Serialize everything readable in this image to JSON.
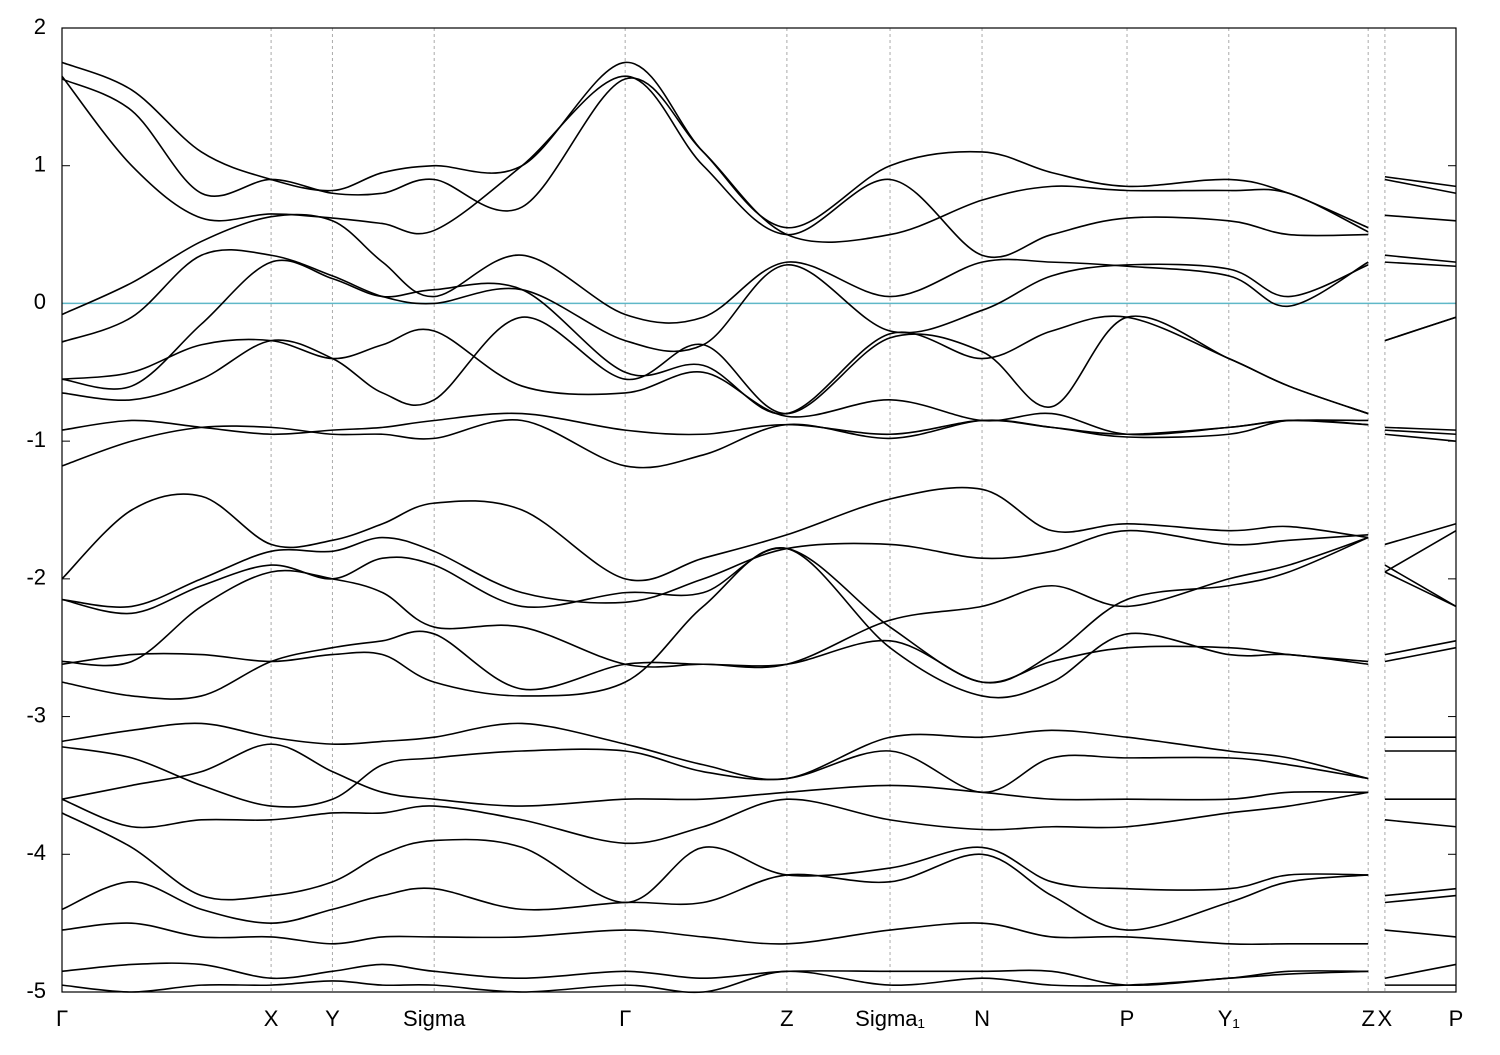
{
  "chart_data": {
    "type": "line",
    "x": [
      0,
      0.05,
      0.1,
      0.15,
      0.194,
      0.23,
      0.267,
      0.33,
      0.404,
      0.46,
      0.52,
      0.594,
      0.66,
      0.71,
      0.764,
      0.837,
      0.88,
      0.937,
      0.943,
      0.949,
      1.0
    ],
    "xlim": [
      0,
      1.0
    ],
    "xticks": [
      {
        "value": 0,
        "label": "Γ"
      },
      {
        "value": 0.15,
        "label": "X"
      },
      {
        "value": 0.194,
        "label": "Y"
      },
      {
        "value": 0.267,
        "label": "Sigma"
      },
      {
        "value": 0.404,
        "label": "Γ"
      },
      {
        "value": 0.52,
        "label": "Z"
      },
      {
        "value": 0.594,
        "label": "Sigma₁"
      },
      {
        "value": 0.66,
        "label": "N"
      },
      {
        "value": 0.764,
        "label": "P"
      },
      {
        "value": 0.837,
        "label": "Y₁"
      },
      {
        "value": 0.937,
        "label": "Z"
      },
      {
        "value": 0.949,
        "label": "X"
      },
      {
        "value": 1.0,
        "label": "P"
      }
    ],
    "ylim": [
      -5,
      2
    ],
    "yticks": [
      -5,
      -4,
      -3,
      -2,
      -1,
      0,
      1,
      2
    ],
    "xgrid": true,
    "reference_line": {
      "value": 0,
      "color": "#5fb8c8"
    },
    "series": [
      {
        "color": "#000000",
        "values": [
          1.75,
          1.55,
          1.1,
          0.9,
          0.82,
          0.95,
          1.0,
          1.0,
          1.75,
          1.1,
          0.55,
          1.0,
          1.1,
          0.95,
          0.85,
          0.9,
          0.8,
          0.55,
          null,
          0.92,
          0.85
        ]
      },
      {
        "color": "#000000",
        "values": [
          1.65,
          1.0,
          0.62,
          0.65,
          0.62,
          0.58,
          0.53,
          1.0,
          1.65,
          1.0,
          0.5,
          0.9,
          0.35,
          0.5,
          0.62,
          0.6,
          0.5,
          0.5,
          null,
          0.64,
          0.6
        ]
      },
      {
        "color": "#000000",
        "values": [
          1.63,
          1.4,
          0.8,
          0.9,
          0.8,
          0.8,
          0.9,
          0.7,
          1.63,
          1.1,
          0.5,
          0.5,
          0.75,
          0.85,
          0.82,
          0.82,
          0.8,
          0.52,
          null,
          0.9,
          0.8
        ]
      },
      {
        "color": "#000000",
        "values": [
          -0.08,
          0.15,
          0.45,
          0.63,
          0.6,
          0.3,
          0.05,
          0.35,
          -0.08,
          -0.1,
          0.3,
          0.05,
          0.3,
          0.3,
          0.27,
          0.2,
          -0.02,
          0.3,
          null,
          0.35,
          0.3
        ]
      },
      {
        "color": "#000000",
        "values": [
          -0.28,
          -0.1,
          0.35,
          0.35,
          0.2,
          0.05,
          0.0,
          0.1,
          -0.27,
          -0.3,
          0.28,
          -0.2,
          -0.05,
          0.2,
          0.28,
          0.25,
          0.05,
          0.28,
          null,
          0.3,
          0.27
        ]
      },
      {
        "color": "#000000",
        "values": [
          -0.55,
          -0.6,
          -0.15,
          0.3,
          0.18,
          0.05,
          0.1,
          0.1,
          -0.5,
          -0.45,
          -0.8,
          -0.22,
          -0.4,
          -0.2,
          -0.1,
          -0.4,
          -0.6,
          -0.8,
          null,
          -0.27,
          -0.1
        ]
      },
      {
        "color": "#000000",
        "values": [
          -0.55,
          -0.5,
          -0.3,
          -0.27,
          -0.4,
          -0.3,
          -0.2,
          -0.6,
          -0.65,
          -0.5,
          -0.82,
          -0.7,
          -0.85,
          -0.8,
          -0.95,
          -0.9,
          -0.85,
          -0.88,
          null,
          -0.92,
          -0.95
        ]
      },
      {
        "color": "#000000",
        "values": [
          -0.65,
          -0.7,
          -0.55,
          -0.27,
          -0.4,
          -0.65,
          -0.7,
          -0.1,
          -0.55,
          -0.3,
          -0.8,
          -0.25,
          -0.35,
          -0.75,
          -0.1,
          -0.4,
          -0.6,
          -0.8,
          null,
          -0.27,
          -0.1
        ]
      },
      {
        "color": "#000000",
        "values": [
          -0.92,
          -0.85,
          -0.9,
          -0.95,
          -0.92,
          -0.9,
          -0.85,
          -0.8,
          -0.92,
          -0.95,
          -0.88,
          -0.95,
          -0.85,
          -0.9,
          -0.95,
          -0.9,
          -0.85,
          -0.85,
          null,
          -0.9,
          -0.92
        ]
      },
      {
        "color": "#000000",
        "values": [
          -1.18,
          -1.0,
          -0.9,
          -0.9,
          -0.95,
          -0.95,
          -0.98,
          -0.85,
          -1.18,
          -1.1,
          -0.88,
          -0.98,
          -0.85,
          -0.9,
          -0.97,
          -0.95,
          -0.85,
          -0.88,
          null,
          -0.95,
          -1.0
        ]
      },
      {
        "color": "#000000",
        "values": [
          -2.0,
          -1.5,
          -1.4,
          -1.75,
          -1.72,
          -1.6,
          -1.45,
          -1.5,
          -2.0,
          -1.85,
          -1.68,
          -1.42,
          -1.35,
          -1.65,
          -1.6,
          -1.65,
          -1.62,
          -1.7,
          null,
          -1.75,
          -1.6
        ]
      },
      {
        "color": "#000000",
        "values": [
          -2.15,
          -2.2,
          -2.0,
          -1.8,
          -1.8,
          -1.7,
          -1.8,
          -2.1,
          -2.17,
          -2.0,
          -1.78,
          -1.75,
          -1.85,
          -1.8,
          -1.65,
          -1.75,
          -1.72,
          -1.68,
          null,
          -1.95,
          -1.65
        ]
      },
      {
        "color": "#000000",
        "values": [
          -2.15,
          -2.25,
          -2.05,
          -1.9,
          -2.0,
          -1.85,
          -1.9,
          -2.2,
          -2.1,
          -2.1,
          -1.78,
          -2.35,
          -2.75,
          -2.55,
          -2.15,
          -2.05,
          -1.95,
          -1.7,
          null,
          -1.9,
          -2.2
        ]
      },
      {
        "color": "#000000",
        "values": [
          -2.6,
          -2.6,
          -2.2,
          -1.95,
          -2.0,
          -2.1,
          -2.35,
          -2.35,
          -2.62,
          -2.62,
          -2.62,
          -2.3,
          -2.2,
          -2.05,
          -2.2,
          -2.0,
          -1.9,
          -1.7,
          null,
          -1.95,
          -2.2
        ]
      },
      {
        "color": "#000000",
        "values": [
          -2.75,
          -2.85,
          -2.85,
          -2.6,
          -2.5,
          -2.45,
          -2.4,
          -2.8,
          -2.62,
          -2.62,
          -2.62,
          -2.45,
          -2.75,
          -2.6,
          -2.5,
          -2.5,
          -2.55,
          -2.6,
          null,
          -2.6,
          -2.5
        ]
      },
      {
        "color": "#000000",
        "values": [
          -2.62,
          -2.55,
          -2.55,
          -2.6,
          -2.55,
          -2.55,
          -2.75,
          -2.85,
          -2.75,
          -2.2,
          -1.78,
          -2.5,
          -2.85,
          -2.75,
          -2.4,
          -2.55,
          -2.55,
          -2.62,
          null,
          -2.55,
          -2.45
        ]
      },
      {
        "color": "#000000",
        "values": [
          -3.18,
          -3.1,
          -3.05,
          -3.15,
          -3.2,
          -3.18,
          -3.15,
          -3.05,
          -3.2,
          -3.35,
          -3.45,
          -3.15,
          -3.15,
          -3.1,
          -3.15,
          -3.25,
          -3.3,
          -3.45,
          null,
          -3.15,
          -3.15
        ]
      },
      {
        "color": "#000000",
        "values": [
          -3.22,
          -3.3,
          -3.5,
          -3.65,
          -3.6,
          -3.35,
          -3.3,
          -3.25,
          -3.25,
          -3.4,
          -3.45,
          -3.25,
          -3.55,
          -3.3,
          -3.3,
          -3.3,
          -3.35,
          -3.45,
          null,
          -3.25,
          -3.25
        ]
      },
      {
        "color": "#000000",
        "values": [
          -3.6,
          -3.5,
          -3.4,
          -3.2,
          -3.4,
          -3.55,
          -3.6,
          -3.65,
          -3.6,
          -3.6,
          -3.55,
          -3.5,
          -3.55,
          -3.6,
          -3.6,
          -3.6,
          -3.55,
          -3.55,
          null,
          -3.6,
          -3.6
        ]
      },
      {
        "color": "#000000",
        "values": [
          -3.6,
          -3.8,
          -3.75,
          -3.75,
          -3.7,
          -3.7,
          -3.65,
          -3.75,
          -3.92,
          -3.8,
          -3.6,
          -3.75,
          -3.82,
          -3.8,
          -3.8,
          -3.7,
          -3.65,
          -3.55,
          null,
          -3.75,
          -3.8
        ]
      },
      {
        "color": "#000000",
        "values": [
          -3.7,
          -3.95,
          -4.3,
          -4.3,
          -4.2,
          -4.0,
          -3.9,
          -3.95,
          -4.35,
          -3.95,
          -4.15,
          -4.1,
          -3.95,
          -4.2,
          -4.25,
          -4.25,
          -4.15,
          -4.15,
          null,
          -4.3,
          -4.25
        ]
      },
      {
        "color": "#000000",
        "values": [
          -4.4,
          -4.2,
          -4.4,
          -4.5,
          -4.4,
          -4.3,
          -4.25,
          -4.4,
          -4.35,
          -4.35,
          -4.15,
          -4.2,
          -4.0,
          -4.3,
          -4.55,
          -4.35,
          -4.2,
          -4.15,
          null,
          -4.35,
          -4.3
        ]
      },
      {
        "color": "#000000",
        "values": [
          -4.55,
          -4.5,
          -4.6,
          -4.6,
          -4.65,
          -4.6,
          -4.6,
          -4.6,
          -4.55,
          -4.6,
          -4.65,
          -4.55,
          -4.5,
          -4.6,
          -4.6,
          -4.65,
          -4.65,
          -4.65,
          null,
          -4.55,
          -4.6
        ]
      },
      {
        "color": "#000000",
        "values": [
          -4.85,
          -4.8,
          -4.8,
          -4.9,
          -4.85,
          -4.8,
          -4.85,
          -4.9,
          -4.85,
          -4.9,
          -4.85,
          -4.85,
          -4.85,
          -4.85,
          -4.95,
          -4.9,
          -4.87,
          -4.85,
          null,
          -4.9,
          -4.8
        ]
      },
      {
        "color": "#000000",
        "values": [
          -4.95,
          -5.0,
          -4.95,
          -4.95,
          -4.92,
          -4.95,
          -4.95,
          -5.0,
          -4.95,
          -5.0,
          -4.85,
          -4.95,
          -4.9,
          -4.95,
          -4.95,
          -4.9,
          -4.85,
          -4.85,
          null,
          -4.95,
          -4.95
        ]
      }
    ]
  }
}
